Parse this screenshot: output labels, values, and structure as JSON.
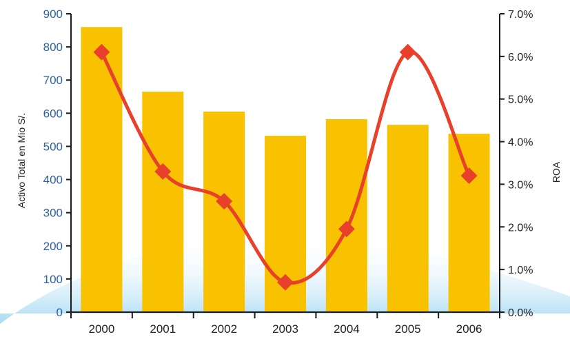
{
  "chart_data": {
    "type": "bar",
    "categories": [
      "2000",
      "2001",
      "2002",
      "2003",
      "2004",
      "2005",
      "2006"
    ],
    "series": [
      {
        "name": "Activo Total",
        "type": "bar",
        "axis": "left",
        "values": [
          860,
          665,
          605,
          532,
          582,
          565,
          538
        ]
      },
      {
        "name": "ROA",
        "type": "line",
        "axis": "right",
        "values": [
          6.1,
          3.3,
          2.6,
          0.7,
          1.95,
          6.1,
          3.2
        ]
      }
    ],
    "title": "",
    "xlabel": "",
    "ylabel": "Activo Total en Mio S/.",
    "y2label": "ROA",
    "ylim": [
      0,
      900
    ],
    "y2lim": [
      0,
      7.0
    ],
    "yticks": [
      "0",
      "100",
      "200",
      "300",
      "400",
      "500",
      "600",
      "700",
      "800",
      "900"
    ],
    "y2ticks": [
      "0.0%",
      "1.0%",
      "2.0%",
      "3.0%",
      "4.0%",
      "5.0%",
      "6.0%",
      "7.0%"
    ],
    "grid": false,
    "legend": "none",
    "colors": {
      "bar": "#f8c200",
      "line": "#e8402a",
      "left_tick_text": "#2b5fa6",
      "axis": "#1a1a1a",
      "background_wave": "#bfe3f5"
    }
  }
}
